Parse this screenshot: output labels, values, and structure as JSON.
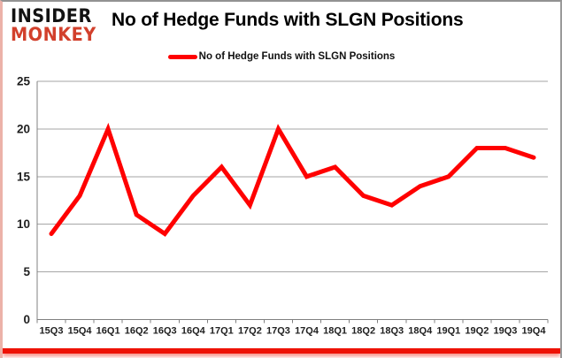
{
  "brand": {
    "line1": "INSIDER",
    "line2": "MONKEY",
    "accent_color": "#d2402c"
  },
  "header": {
    "title": "No of Hedge Funds with SLGN Positions"
  },
  "legend": {
    "label": "No of Hedge Funds with SLGN Positions",
    "swatch_color": "#ff0000"
  },
  "chart_data": {
    "type": "line",
    "title": "No of Hedge Funds with SLGN Positions",
    "categories": [
      "15Q3",
      "15Q4",
      "16Q1",
      "16Q2",
      "16Q3",
      "16Q4",
      "17Q1",
      "17Q2",
      "17Q3",
      "17Q4",
      "18Q1",
      "18Q2",
      "18Q3",
      "18Q4",
      "19Q1",
      "19Q2",
      "19Q3",
      "19Q4"
    ],
    "series": [
      {
        "name": "No of Hedge Funds with SLGN Positions",
        "color": "#ff0000",
        "values": [
          9,
          13,
          20,
          11,
          9,
          13,
          16,
          12,
          20,
          15,
          16,
          13,
          12,
          14,
          15,
          18,
          18,
          17
        ]
      }
    ],
    "xlabel": "",
    "ylabel": "",
    "ylim": [
      0,
      25
    ],
    "y_ticks": [
      0,
      5,
      10,
      15,
      20,
      25
    ],
    "grid": true,
    "legend_position": "top",
    "grid_color": "#a6a6a6",
    "axis_color": "#808080",
    "label_color": "#1f1f1f"
  },
  "frame": {
    "accent_bar_color": "#ee1205"
  }
}
